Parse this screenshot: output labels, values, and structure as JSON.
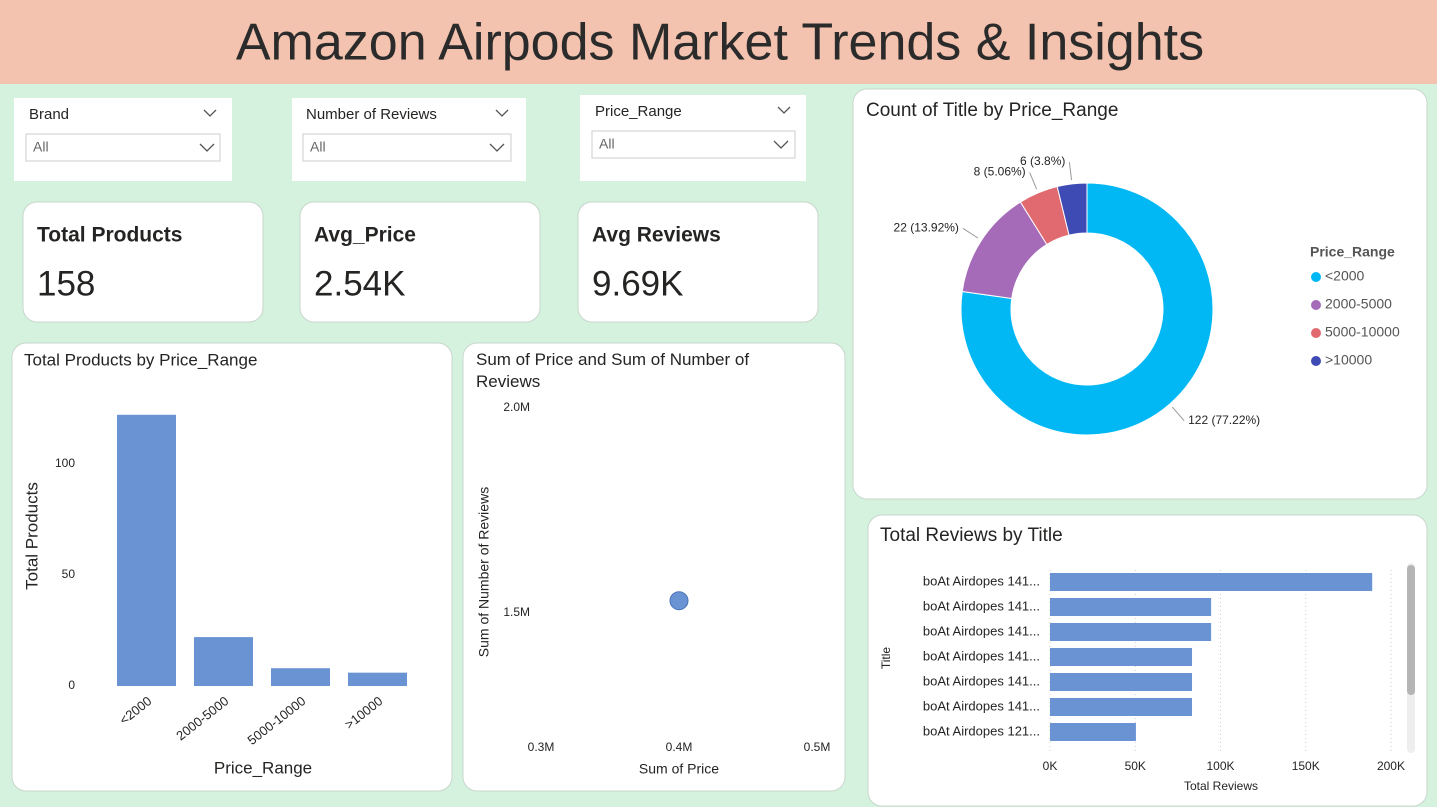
{
  "header": {
    "title": "Amazon Airpods Market Trends & Insights"
  },
  "slicers": [
    {
      "label": "Brand",
      "value": "All"
    },
    {
      "label": "Number of Reviews",
      "value": "All"
    },
    {
      "label": "Price_Range",
      "value": "All"
    }
  ],
  "cards": [
    {
      "label": "Total Products",
      "value": "158"
    },
    {
      "label": "Avg_Price",
      "value": "2.54K"
    },
    {
      "label": "Avg Reviews",
      "value": "9.69K"
    }
  ],
  "chart_data": [
    {
      "type": "bar",
      "title": "Total Products by Price_Range",
      "x_label": "Price_Range",
      "y_label": "Total Products",
      "categories": [
        "<2000",
        "2000-5000",
        "5000-10000",
        ">10000"
      ],
      "values": [
        122,
        22,
        8,
        6
      ],
      "color": "#6a93d4",
      "ylim": [
        0,
        130
      ],
      "yticks": [
        0,
        50,
        100
      ]
    },
    {
      "type": "scatter",
      "title": "Sum of Price and Sum of Number of Reviews",
      "x_label": "Sum of Price",
      "y_label": "Sum of Number of Reviews",
      "x": [
        400000
      ],
      "values": [
        1530000
      ],
      "color": "#6a93d4",
      "xlim": [
        300000,
        500000
      ],
      "xticks": [
        {
          "value": 300000,
          "label": "0.3M"
        },
        {
          "value": 400000,
          "label": "0.4M"
        },
        {
          "value": 500000,
          "label": "0.5M"
        }
      ],
      "ylim": [
        1200000,
        2000000
      ],
      "yticks": [
        {
          "value": 1500000,
          "label": "1.5M"
        },
        {
          "value": 2000000,
          "label": "2.0M"
        }
      ]
    },
    {
      "type": "pie",
      "title": "Count of Title by Price_Range",
      "legend_title": "Price_Range",
      "legend": "right",
      "categories": [
        "<2000",
        "2000-5000",
        "5000-10000",
        ">10000"
      ],
      "values": [
        122,
        22,
        8,
        6
      ],
      "value_labels": [
        "122 (77.22%)",
        "22 (13.92%)",
        "8 (5.06%)",
        "6 (3.8%)"
      ],
      "colors": [
        "#01b8f5",
        "#a66bb8",
        "#e06a6f",
        "#3f4bb5"
      ]
    },
    {
      "type": "hbar",
      "title": "Total Reviews by Title",
      "x_label": "Total Reviews",
      "y_label": "Title",
      "categories": [
        "boAt Airdopes 141...",
        "boAt Airdopes 141...",
        "boAt Airdopes 141...",
        "boAt Airdopes 141...",
        "boAt Airdopes 141...",
        "boAt Airdopes 141...",
        "boAt Airdopes 121..."
      ],
      "values": [
        189000,
        94500,
        94500,
        83300,
        83300,
        83300,
        50400
      ],
      "color": "#6a93d4",
      "grid": true,
      "xlim": [
        0,
        205000
      ],
      "xticks": [
        {
          "value": 0,
          "label": "0K"
        },
        {
          "value": 50000,
          "label": "50K"
        },
        {
          "value": 100000,
          "label": "100K"
        },
        {
          "value": 150000,
          "label": "150K"
        },
        {
          "value": 200000,
          "label": "200K"
        }
      ]
    }
  ]
}
